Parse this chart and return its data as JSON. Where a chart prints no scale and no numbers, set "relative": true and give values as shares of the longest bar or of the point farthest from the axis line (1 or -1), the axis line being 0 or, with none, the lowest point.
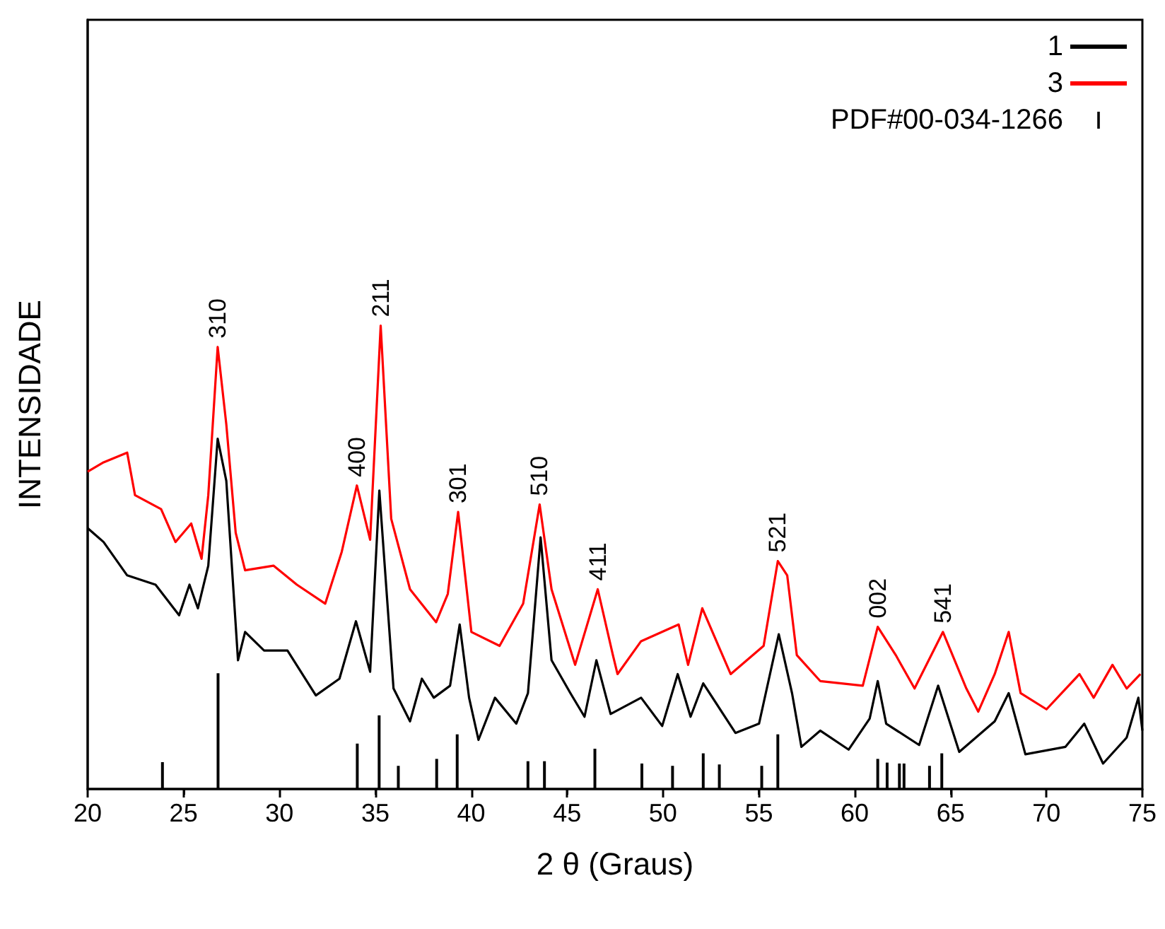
{
  "chart_data": {
    "type": "line",
    "relative": true,
    "xlabel": "2 θ (Graus)",
    "ylabel": "INTENSIDADE",
    "xlim": [
      20,
      75
    ],
    "xticks": [
      20,
      25,
      30,
      35,
      40,
      45,
      50,
      55,
      60,
      65,
      70,
      75
    ],
    "legend": "top right",
    "grid": false,
    "marker": "none",
    "line_style": "solid",
    "series": [
      {
        "name": "1",
        "color": "#000000",
        "x": [
          20,
          20.83,
          22.06,
          23.54,
          24.77,
          25.31,
          25.75,
          26.29,
          26.78,
          27.23,
          27.84,
          28.21,
          29.2,
          30.42,
          31.9,
          33.13,
          33.99,
          34.73,
          35.21,
          35.95,
          36.81,
          37.43,
          38.05,
          38.9,
          39.4,
          39.89,
          40.38,
          41.24,
          42.35,
          42.96,
          43.62,
          44.19,
          45.17,
          45.91,
          46.53,
          47.27,
          48.86,
          49.96,
          50.77,
          51.44,
          52.1,
          53.78,
          55.01,
          56.04,
          56.73,
          57.22,
          58.2,
          59.68,
          60.78,
          61.2,
          61.64,
          63.36,
          64.35,
          65.45,
          67.3,
          68.03,
          68.9,
          70.99,
          71.97,
          72.95,
          74.18,
          74.79,
          75
        ],
        "values": [
          0.563,
          0.533,
          0.461,
          0.441,
          0.375,
          0.441,
          0.39,
          0.482,
          0.756,
          0.665,
          0.278,
          0.339,
          0.299,
          0.299,
          0.202,
          0.238,
          0.362,
          0.253,
          0.644,
          0.217,
          0.146,
          0.238,
          0.197,
          0.223,
          0.355,
          0.197,
          0.106,
          0.197,
          0.141,
          0.207,
          0.543,
          0.278,
          0.207,
          0.156,
          0.278,
          0.162,
          0.197,
          0.136,
          0.248,
          0.156,
          0.228,
          0.121,
          0.141,
          0.334,
          0.207,
          0.091,
          0.126,
          0.085,
          0.152,
          0.233,
          0.141,
          0.095,
          0.223,
          0.08,
          0.146,
          0.207,
          0.075,
          0.091,
          0.141,
          0.055,
          0.111,
          0.197,
          0.126
        ]
      },
      {
        "name": "3",
        "color": "#ff0000",
        "x": [
          20,
          20.83,
          22.06,
          22.47,
          23.83,
          24.58,
          25.4,
          25.94,
          26.29,
          26.78,
          27.23,
          27.72,
          28.21,
          29.69,
          30.91,
          32.39,
          33.25,
          34.04,
          34.73,
          35.28,
          35.83,
          36.81,
          38.17,
          38.78,
          39.32,
          40.01,
          41.48,
          42.71,
          43.57,
          44.19,
          45.42,
          46.6,
          47.39,
          47.63,
          48.86,
          50.82,
          51.31,
          52.05,
          53.53,
          55.25,
          55.99,
          56.48,
          56.98,
          58.2,
          60.42,
          61.2,
          62.14,
          63.12,
          64.6,
          65.82,
          66.44,
          67.3,
          68.03,
          68.65,
          70,
          71.72,
          72.46,
          73.44,
          74.18,
          74.9
        ],
        "values": [
          0.685,
          0.705,
          0.726,
          0.634,
          0.604,
          0.533,
          0.573,
          0.497,
          0.634,
          0.954,
          0.787,
          0.553,
          0.472,
          0.482,
          0.441,
          0.4,
          0.512,
          0.655,
          0.538,
          1,
          0.583,
          0.431,
          0.36,
          0.421,
          0.598,
          0.339,
          0.309,
          0.4,
          0.614,
          0.431,
          0.268,
          0.431,
          0.289,
          0.248,
          0.319,
          0.355,
          0.268,
          0.39,
          0.248,
          0.309,
          0.492,
          0.461,
          0.289,
          0.233,
          0.223,
          0.35,
          0.289,
          0.217,
          0.339,
          0.217,
          0.167,
          0.248,
          0.339,
          0.207,
          0.172,
          0.248,
          0.197,
          0.268,
          0.217,
          0.248
        ]
      },
      {
        "name": "PDF#00-034-1266",
        "type": "bar",
        "color": "#000000",
        "x": [
          23.9,
          26.8,
          34.06,
          35.2,
          36.2,
          38.2,
          39.27,
          42.96,
          43.82,
          46.45,
          48.9,
          50.5,
          52.1,
          52.94,
          55.15,
          55.99,
          61.2,
          61.69,
          62.33,
          62.57,
          63.9,
          64.54
        ],
        "values": [
          0.058,
          0.25,
          0.098,
          0.159,
          0.05,
          0.065,
          0.118,
          0.06,
          0.06,
          0.087,
          0.055,
          0.05,
          0.077,
          0.053,
          0.05,
          0.118,
          0.065,
          0.057,
          0.055,
          0.055,
          0.05,
          0.077
        ]
      }
    ],
    "annotations": [
      {
        "text": "310",
        "x": 26.78,
        "y": 0.954
      },
      {
        "text": "400",
        "x": 34.04,
        "y": 0.655
      },
      {
        "text": "211",
        "x": 35.28,
        "y": 1
      },
      {
        "text": "301",
        "x": 39.32,
        "y": 0.598
      },
      {
        "text": "510",
        "x": 43.57,
        "y": 0.614
      },
      {
        "text": "411",
        "x": 46.6,
        "y": 0.431
      },
      {
        "text": "521",
        "x": 55.99,
        "y": 0.492
      },
      {
        "text": "002",
        "x": 61.2,
        "y": 0.35
      },
      {
        "text": "541",
        "x": 64.6,
        "y": 0.339
      }
    ]
  }
}
